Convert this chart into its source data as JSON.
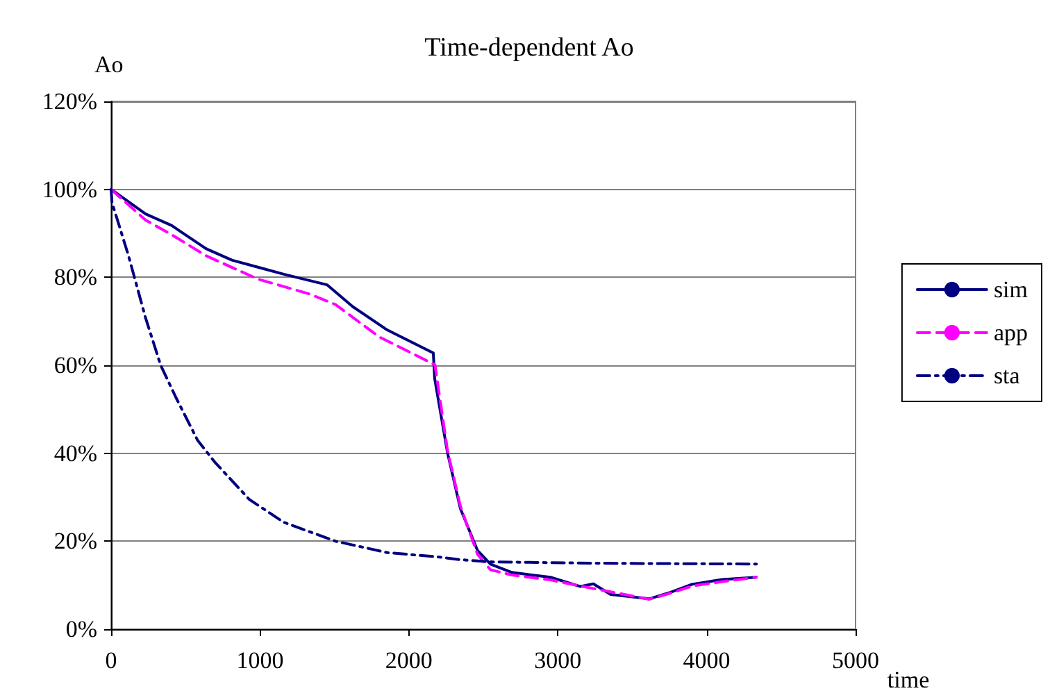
{
  "chart_data": {
    "type": "line",
    "title": "Time-dependent Ao",
    "ylabel": "Ao",
    "xlabel": "time",
    "xlim": [
      0,
      5000
    ],
    "xticks": [
      0,
      1000,
      2000,
      3000,
      4000,
      5000
    ],
    "ylim": [
      0,
      120
    ],
    "yticks": [
      {
        "value": 0,
        "label": "0%"
      },
      {
        "value": 20,
        "label": "20%"
      },
      {
        "value": 40,
        "label": "40%"
      },
      {
        "value": 60,
        "label": "60%"
      },
      {
        "value": 80,
        "label": "80%"
      },
      {
        "value": 100,
        "label": "100%"
      },
      {
        "value": 120,
        "label": "120%"
      }
    ],
    "grid": "y",
    "legend": "right",
    "marker": "none",
    "series": [
      {
        "name": "sim",
        "color": "#000080",
        "line_style": "solid",
        "x": [
          0,
          232,
          406,
          638,
          812,
          986,
          1160,
          1450,
          1624,
          1856,
          2164,
          2173,
          2260,
          2346,
          2461,
          2548,
          2692,
          2951,
          3153,
          3239,
          3355,
          3614,
          3758,
          3902,
          4104,
          4334
        ],
        "values": [
          100,
          94.4,
          91.8,
          86.5,
          83.9,
          82.3,
          80.7,
          78.3,
          73.3,
          68,
          62.8,
          57,
          40,
          27.4,
          17.9,
          14.8,
          12.9,
          11.8,
          9.7,
          10.3,
          7.9,
          6.9,
          8.4,
          10.2,
          11.3,
          11.8
        ]
      },
      {
        "name": "app",
        "color": "#ff00ff",
        "line_style": "dashed",
        "x": [
          0,
          232,
          406,
          638,
          986,
          1334,
          1508,
          1798,
          2175,
          2260,
          2346,
          2461,
          2548,
          2692,
          2951,
          3153,
          3355,
          3614,
          3758,
          3902,
          4104,
          4334
        ],
        "values": [
          100,
          93,
          89.7,
          84.9,
          79.6,
          76.2,
          73.8,
          66.5,
          60.1,
          40.5,
          28,
          17,
          13.5,
          12.3,
          11.2,
          9.8,
          8.5,
          6.8,
          8.2,
          9.8,
          10.8,
          11.8
        ]
      },
      {
        "name": "sta",
        "color": "#000080",
        "line_style": "dashdot",
        "x": [
          0,
          6,
          116,
          232,
          333,
          435,
          580,
          696,
          928,
          1160,
          1508,
          1856,
          2204,
          2346,
          2548,
          3239,
          4334
        ],
        "values": [
          100,
          97,
          85,
          70.7,
          60,
          52.7,
          43,
          38,
          29.5,
          24.3,
          20,
          17.4,
          16.4,
          15.8,
          15.3,
          15,
          14.8
        ]
      }
    ]
  }
}
